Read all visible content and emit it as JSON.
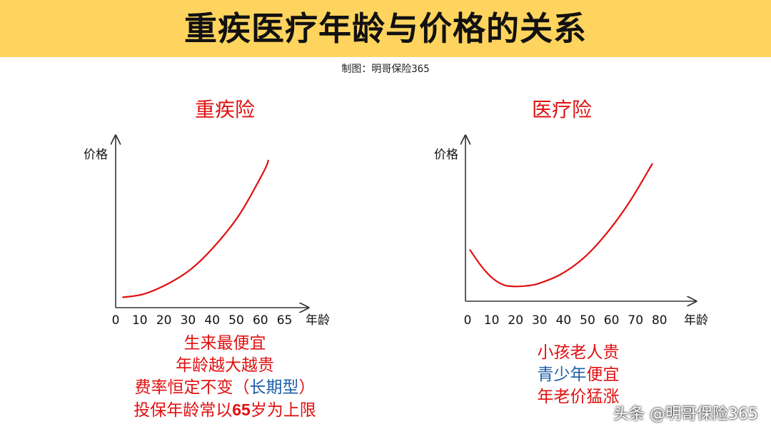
{
  "page": {
    "title": "重疾医疗年龄与价格的关系",
    "credit": "制图：明哥保险365",
    "watermark": "头条 @明哥保险365"
  },
  "colors": {
    "banner": "#ffd45e",
    "curve": "#e01010",
    "text_red": "#e01010",
    "text_blue": "#1e5fa8"
  },
  "chart_data": [
    {
      "type": "line",
      "title": "重疾险",
      "ylabel": "价格",
      "xlabel": "年龄",
      "x_ticks": [
        "0",
        "10",
        "20",
        "30",
        "40",
        "50",
        "60",
        "65"
      ],
      "x": [
        1,
        10,
        20,
        30,
        40,
        50,
        60,
        62
      ],
      "y": [
        1,
        3,
        9,
        18,
        32,
        50,
        75,
        82
      ],
      "ylim": [
        0,
        100
      ],
      "y_ticks_shown": false,
      "notes": [
        [
          {
            "t": "生来最便宜",
            "c": "red"
          }
        ],
        [
          {
            "t": "年龄越大越贵",
            "c": "red"
          }
        ],
        [
          {
            "t": "费率恒定不变（",
            "c": "red"
          },
          {
            "t": "长期型",
            "c": "blue"
          },
          {
            "t": "）",
            "c": "red"
          }
        ],
        [
          {
            "t": "投保年龄常以",
            "c": "red"
          },
          {
            "t": "65",
            "c": "red",
            "b": true
          },
          {
            "t": "岁为上限",
            "c": "red"
          }
        ]
      ]
    },
    {
      "type": "line",
      "title": "医疗险",
      "ylabel": "价格",
      "xlabel": "年龄",
      "x_ticks": [
        "0",
        "10",
        "20",
        "30",
        "40",
        "50",
        "60",
        "70",
        "80"
      ],
      "x": [
        0,
        5,
        10,
        15,
        20,
        25,
        30,
        40,
        50,
        60,
        70,
        80
      ],
      "y": [
        30,
        18,
        9,
        4,
        3,
        3.5,
        5,
        12,
        24,
        42,
        65,
        93
      ],
      "ylim": [
        0,
        100
      ],
      "y_ticks_shown": false,
      "notes": [
        [
          {
            "t": "小孩老人贵",
            "c": "red"
          }
        ],
        [
          {
            "t": "青少年",
            "c": "blue"
          },
          {
            "t": "便宜",
            "c": "red"
          }
        ],
        [
          {
            "t": "年老价猛涨",
            "c": "red"
          }
        ]
      ]
    }
  ]
}
